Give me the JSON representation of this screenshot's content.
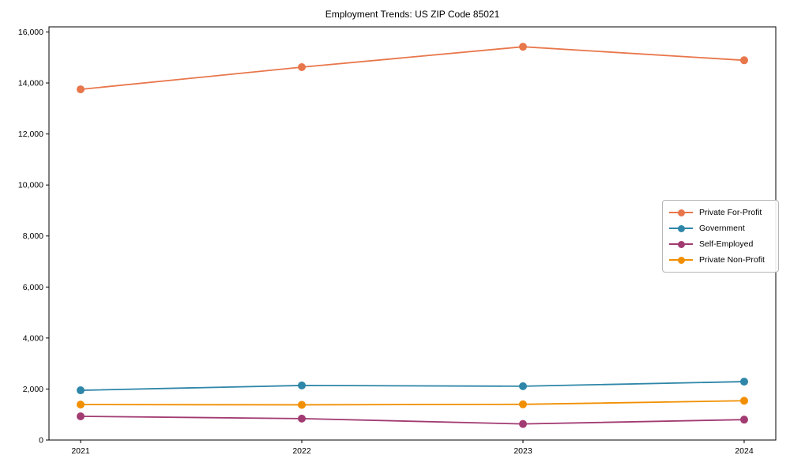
{
  "figure": {
    "background_color": "#ffffff",
    "axis_color": "#000000",
    "text_color": "#000000"
  },
  "chart_data": {
    "type": "line",
    "title": "Employment Trends: US ZIP Code 85021",
    "xlabel": "",
    "ylabel": "",
    "x": [
      2021,
      2022,
      2023,
      2024
    ],
    "x_tick_labels": [
      "2021",
      "2022",
      "2023",
      "2024"
    ],
    "y_ticks": [
      0,
      2000,
      4000,
      6000,
      8000,
      10000,
      12000,
      14000,
      16000
    ],
    "y_tick_labels": [
      "0",
      "2,000",
      "4,000",
      "6,000",
      "8,000",
      "10,000",
      "12,000",
      "14,000",
      "16,000"
    ],
    "ylim": [
      0,
      16200
    ],
    "grid": false,
    "marker": "circle",
    "legend_position": "center-right",
    "series": [
      {
        "name": "Private For-Profit",
        "color": "#E8764B",
        "values": [
          13750,
          14620,
          15420,
          14890
        ]
      },
      {
        "name": "Government",
        "color": "#2E86A8",
        "values": [
          1950,
          2140,
          2110,
          2290
        ]
      },
      {
        "name": "Self-Employed",
        "color": "#A23B72",
        "values": [
          930,
          840,
          630,
          800
        ]
      },
      {
        "name": "Private Non-Profit",
        "color": "#F18F01",
        "values": [
          1390,
          1380,
          1400,
          1540
        ]
      }
    ]
  }
}
